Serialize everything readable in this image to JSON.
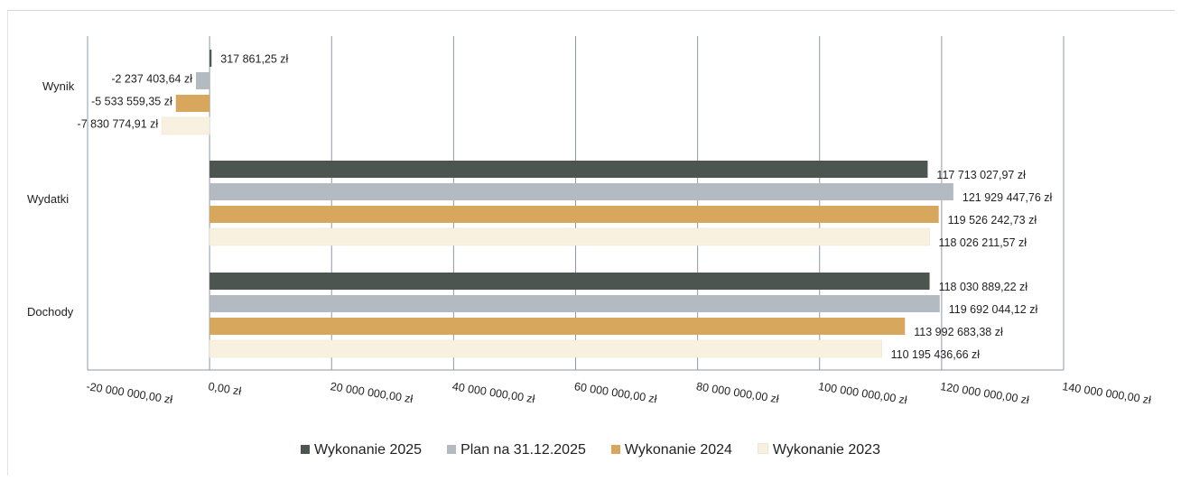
{
  "chart_data": {
    "type": "bar",
    "orientation": "horizontal",
    "categories": [
      "Wynik",
      "Wydatki",
      "Dochody"
    ],
    "series": [
      {
        "name": "Wykonanie 2025",
        "color": "#4d5550",
        "values": [
          317861.25,
          117713027.97,
          118030889.22
        ],
        "labels": [
          "317 861,25 zł",
          "117 713 027,97 zł",
          "118 030 889,22 zł"
        ]
      },
      {
        "name": "Plan na 31.12.2025",
        "color": "#b4bac2",
        "values": [
          -2237403.64,
          121929447.76,
          119692044.12
        ],
        "labels": [
          "-2 237 403,64 zł",
          "121 929 447,76 zł",
          "119 692 044,12 zł"
        ]
      },
      {
        "name": "Wykonanie 2024",
        "color": "#d6a75d",
        "values": [
          -5533559.35,
          119526242.73,
          113992683.38
        ],
        "labels": [
          "-5 533 559,35 zł",
          "119 526 242,73 zł",
          "113 992 683,38 zł"
        ]
      },
      {
        "name": "Wykonanie 2023",
        "color": "#f8f1df",
        "values": [
          -7830774.91,
          118026211.57,
          110195436.66
        ],
        "labels": [
          "-7 830 774,91 zł",
          "118 026 211,57 zł",
          "110 195 436,66 zł"
        ]
      }
    ],
    "xlim": [
      -20000000,
      140000000
    ],
    "ticks": [
      -20000000,
      0,
      20000000,
      40000000,
      60000000,
      80000000,
      100000000,
      120000000,
      140000000
    ],
    "tick_labels": [
      "-20 000 000,00 zł",
      "0,00 zł",
      "20 000 000,00 zł",
      "40 000 000,00 zł",
      "60 000 000,00 zł",
      "80 000 000,00 zł",
      "100 000 000,00 zł",
      "120 000 000,00 zł",
      "140 000 000,00 zł"
    ],
    "grid": "vertical",
    "legend": "bottom"
  }
}
